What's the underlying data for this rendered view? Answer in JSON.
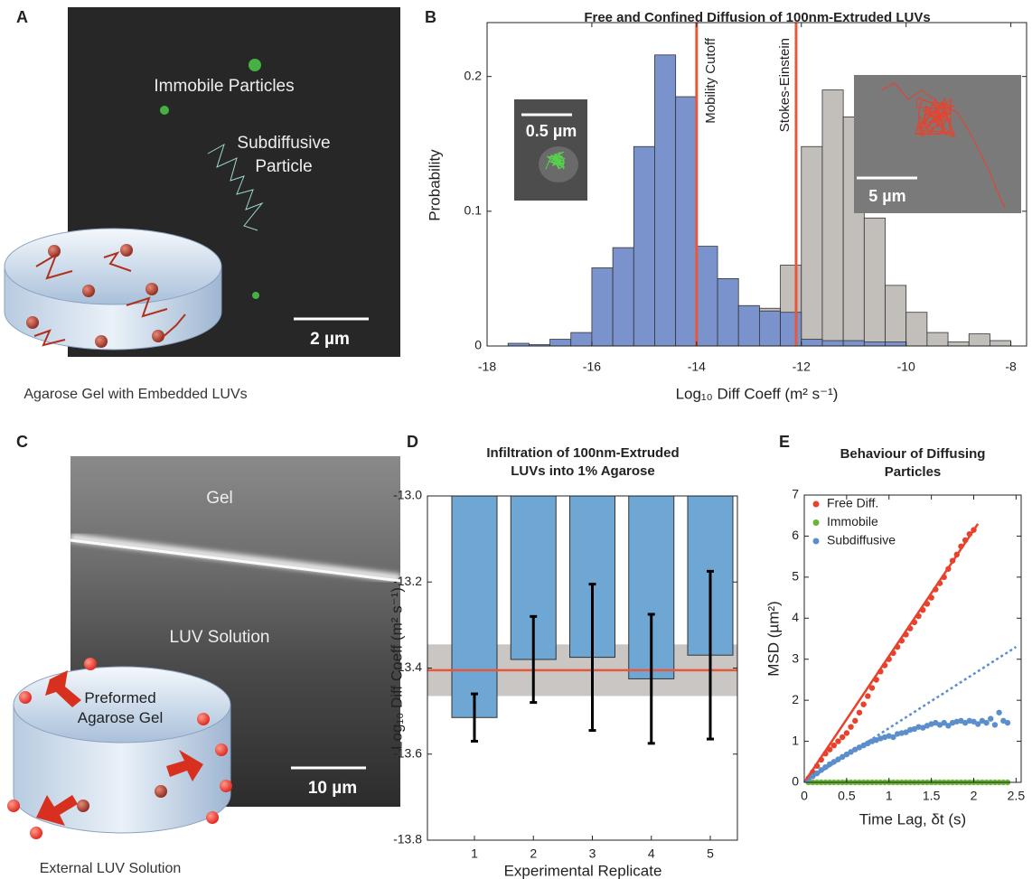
{
  "panels": {
    "a": {
      "letter": "A",
      "labels": [
        "Immobile Particles",
        "Subdiffusive Particle"
      ],
      "scale_bar": "2 µm",
      "caption": "Agarose Gel with Embedded LUVs"
    },
    "c": {
      "letter": "C",
      "labels": [
        "Gel",
        "LUV Solution",
        "Preformed Agarose Gel"
      ],
      "scale_bar": "10 µm",
      "caption": "External LUV Solution"
    }
  },
  "chart_data": [
    {
      "type": "histogram",
      "panel": "B",
      "title": "Free and Confined Diffusion of 100nm-Extruded LUVs",
      "xlabel": "Log₁₀ Diff Coeff (m² s⁻¹)",
      "ylabel": "Probability",
      "bins": [
        -17.6,
        -17.2,
        -16.8,
        -16.4,
        -16.0,
        -15.6,
        -15.2,
        -14.8,
        -14.4,
        -14.0,
        -13.6,
        -13.2,
        -12.8,
        -12.4,
        -12.0,
        -11.6,
        -11.2,
        -10.8,
        -10.4,
        -10.0,
        -9.6,
        -9.2,
        -8.8,
        -8.4,
        -8.0
      ],
      "series": [
        {
          "color": "#c2beba",
          "values": [
            0,
            0,
            0,
            0,
            0,
            0,
            0,
            0,
            0.002,
            0.005,
            0.008,
            0.01,
            0.028,
            0.06,
            0.148,
            0.19,
            0.17,
            0.095,
            0.045,
            0.025,
            0.01,
            0.003,
            0.009,
            0.004
          ]
        },
        {
          "color": "#7b93cc",
          "values": [
            0.002,
            0.001,
            0.005,
            0.01,
            0.058,
            0.073,
            0.148,
            0.216,
            0.185,
            0.074,
            0.05,
            0.03,
            0.026,
            0.025,
            0.005,
            0.004,
            0.004,
            0.003,
            0.003,
            0,
            0,
            0,
            0,
            0
          ]
        }
      ],
      "vlines": [
        {
          "value": -14,
          "label": "Mobility Cutoff",
          "color": "#e8573a"
        },
        {
          "value": -12.1,
          "label": "Stokes-Einstein",
          "color": "#e8573a"
        }
      ],
      "insets": [
        {
          "scale_bar": "0.5 µm"
        },
        {
          "scale_bar": "5 µm"
        }
      ],
      "xlim": [
        -18,
        -7.7
      ],
      "ylim": [
        0,
        0.24
      ],
      "xticks": [
        -18,
        -16,
        -14,
        -12,
        -10,
        -8
      ],
      "yticks": [
        0,
        0.1,
        0.2
      ]
    },
    {
      "type": "bar",
      "panel": "D",
      "title_lines": [
        "Infiltration of 100nm-Extruded",
        "LUVs into 1% Agarose"
      ],
      "xlabel": "Experimental Replicate",
      "ylabel": "Log₁₀ Diff Coeff (m² s⁻¹)",
      "categories": [
        "1",
        "2",
        "3",
        "4",
        "5"
      ],
      "values": [
        -13.515,
        -13.38,
        -13.375,
        -13.425,
        -13.37
      ],
      "errors": [
        0.055,
        0.1,
        0.17,
        0.15,
        0.195
      ],
      "color": "#6fa7d4",
      "mean": -13.405,
      "mean_error": 0.06,
      "mean_color": "#e8573a",
      "ylim": [
        -13.8,
        -13.0
      ],
      "yticks": [
        {
          "value": -13,
          "label": "-13.0"
        },
        -13.2,
        -13.4,
        -13.6,
        -13.8
      ]
    },
    {
      "type": "scatter",
      "panel": "E",
      "title_lines": [
        "Behaviour of Diffusing",
        "Particles"
      ],
      "xlabel": "Time Lag, δt (s)",
      "ylabel": "MSD (µm²)",
      "x": [
        0.05,
        0.1,
        0.15,
        0.2,
        0.25,
        0.3,
        0.35,
        0.4,
        0.45,
        0.5,
        0.55,
        0.6,
        0.65,
        0.7,
        0.75,
        0.8,
        0.85,
        0.9,
        0.95,
        1.0,
        1.05,
        1.1,
        1.15,
        1.2,
        1.25,
        1.3,
        1.35,
        1.4,
        1.45,
        1.5,
        1.55,
        1.6,
        1.65,
        1.7,
        1.75,
        1.8,
        1.85,
        1.9,
        1.95,
        2.0,
        2.05,
        2.1,
        2.15,
        2.2,
        2.25,
        2.3,
        2.35,
        2.4
      ],
      "series": [
        {
          "name": "Free Diff.",
          "color": "#e8412c",
          "values": [
            0.1,
            0.25,
            0.4,
            0.55,
            0.7,
            0.8,
            0.9,
            1.0,
            1.1,
            1.2,
            1.35,
            1.5,
            1.7,
            1.9,
            2.1,
            2.3,
            2.5,
            2.7,
            2.85,
            3.0,
            3.15,
            3.3,
            3.45,
            3.6,
            3.75,
            3.9,
            4.05,
            4.2,
            4.35,
            4.5,
            4.7,
            4.85,
            5.0,
            5.2,
            5.4,
            5.55,
            5.75,
            5.9,
            6.05,
            6.15,
            null,
            null,
            null,
            null,
            null,
            null,
            null,
            null
          ]
        },
        {
          "name": "Immobile",
          "color": "#6ab534",
          "values": [
            0,
            0,
            0,
            0,
            0,
            0,
            0,
            0,
            0,
            0,
            0,
            0,
            0,
            0,
            0,
            0,
            0,
            0,
            0,
            0,
            0,
            0,
            0,
            0,
            0,
            0,
            0,
            0,
            0,
            0,
            0,
            0,
            0,
            0,
            0,
            0,
            0,
            0,
            0,
            0,
            0,
            0,
            0,
            0,
            0,
            0,
            0,
            0
          ]
        },
        {
          "name": "Subdiffusive",
          "color": "#5b8fcc",
          "values": [
            0.08,
            0.15,
            0.22,
            0.3,
            0.37,
            0.44,
            0.5,
            0.56,
            0.62,
            0.68,
            0.74,
            0.8,
            0.85,
            0.9,
            0.95,
            1.0,
            1.03,
            1.07,
            1.1,
            1.13,
            1.1,
            1.18,
            1.2,
            1.22,
            1.28,
            1.3,
            1.35,
            1.33,
            1.38,
            1.42,
            1.45,
            1.4,
            1.45,
            1.38,
            1.45,
            1.48,
            1.5,
            1.45,
            1.5,
            1.48,
            1.42,
            1.5,
            1.45,
            1.55,
            1.4,
            1.7,
            1.5,
            1.45
          ]
        }
      ],
      "fits": [
        {
          "color": "#e8412c",
          "x": [
            0,
            2.05
          ],
          "y": [
            0,
            6.3
          ]
        },
        {
          "color": "#5b8fcc",
          "dashed": true,
          "x": [
            0,
            2.5
          ],
          "y": [
            0,
            3.3
          ]
        }
      ],
      "xlim": [
        0,
        2.56
      ],
      "ylim": [
        0,
        7
      ],
      "xticks": [
        0,
        0.5,
        1,
        1.5,
        2,
        2.5
      ],
      "yticks": [
        0,
        1,
        2,
        3,
        4,
        5,
        6,
        7
      ]
    }
  ]
}
